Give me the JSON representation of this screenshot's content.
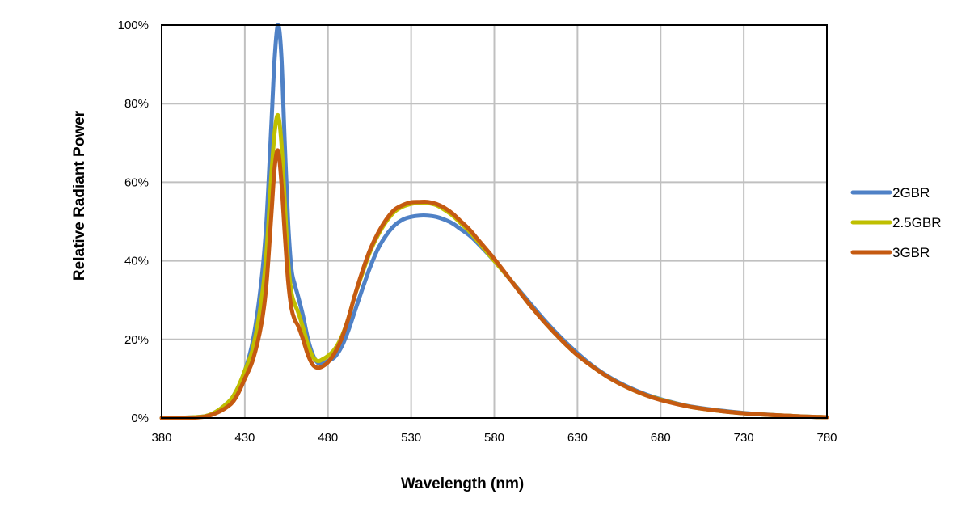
{
  "chart_data": {
    "type": "line",
    "title": "",
    "xlabel": "Wavelength (nm)",
    "ylabel": "Relative Radiant Power",
    "xlim": [
      380,
      780
    ],
    "ylim": [
      0,
      100
    ],
    "x_ticks": [
      380,
      430,
      480,
      530,
      580,
      630,
      680,
      730,
      780
    ],
    "y_ticks": [
      0,
      20,
      40,
      60,
      80,
      100
    ],
    "y_tick_labels": [
      "0%",
      "20%",
      "40%",
      "60%",
      "80%",
      "100%"
    ],
    "grid": true,
    "legend_position": "right",
    "x": [
      380,
      400,
      410,
      420,
      425,
      430,
      435,
      440,
      443,
      446,
      448,
      450,
      452,
      454,
      456,
      458,
      460,
      462,
      465,
      468,
      471,
      474,
      477,
      480,
      484,
      488,
      492,
      496,
      500,
      505,
      510,
      515,
      520,
      525,
      530,
      535,
      540,
      545,
      550,
      555,
      560,
      565,
      570,
      580,
      590,
      600,
      610,
      620,
      630,
      640,
      650,
      660,
      670,
      680,
      700,
      730,
      760,
      780
    ],
    "series": [
      {
        "name": "2GBR",
        "color": "#4f81c6",
        "values": [
          0,
          0.2,
          1,
          4,
          7,
          12,
          20,
          35,
          50,
          75,
          92,
          100,
          92,
          70,
          50,
          38,
          34,
          31,
          26,
          20,
          16,
          14,
          14,
          14.5,
          15.5,
          18,
          22,
          27,
          32,
          38,
          43,
          46.5,
          49,
          50.5,
          51.2,
          51.5,
          51.5,
          51.2,
          50.5,
          49.5,
          48,
          46.5,
          44.5,
          40,
          35,
          30,
          25,
          20.5,
          16.5,
          13,
          10.2,
          8,
          6.2,
          4.8,
          2.8,
          1.3,
          0.5,
          0.2
        ]
      },
      {
        "name": "2.5GBR",
        "color": "#bfbf00",
        "values": [
          0,
          0.2,
          1,
          4,
          7,
          12,
          18,
          30,
          42,
          62,
          73,
          77,
          70,
          55,
          40,
          32,
          29,
          27,
          23,
          18.5,
          15.5,
          14.5,
          15,
          15.8,
          17.5,
          20.5,
          25,
          31,
          36,
          42,
          46.5,
          50,
          52.5,
          53.8,
          54.5,
          54.8,
          54.7,
          54.2,
          53,
          51.5,
          49.5,
          47.5,
          45,
          40,
          35,
          29.5,
          24.5,
          20,
          16,
          12.8,
          10,
          7.8,
          6,
          4.7,
          2.7,
          1.2,
          0.5,
          0.2
        ]
      },
      {
        "name": "3GBR",
        "color": "#c55a11",
        "values": [
          0,
          0.1,
          0.8,
          3,
          5.5,
          10,
          15,
          24,
          34,
          52,
          64,
          68,
          60,
          47,
          35,
          28,
          25,
          23.5,
          20,
          16,
          13.5,
          12.8,
          13.2,
          14.2,
          16.5,
          20,
          25,
          31,
          36.5,
          42.5,
          47,
          50.5,
          53,
          54.2,
          54.9,
          55,
          55,
          54.5,
          53.5,
          52,
          50,
          48,
          45.5,
          40.5,
          35,
          29.5,
          24.5,
          20,
          16,
          12.8,
          10,
          7.8,
          6,
          4.6,
          2.7,
          1.2,
          0.5,
          0.2
        ]
      }
    ]
  }
}
